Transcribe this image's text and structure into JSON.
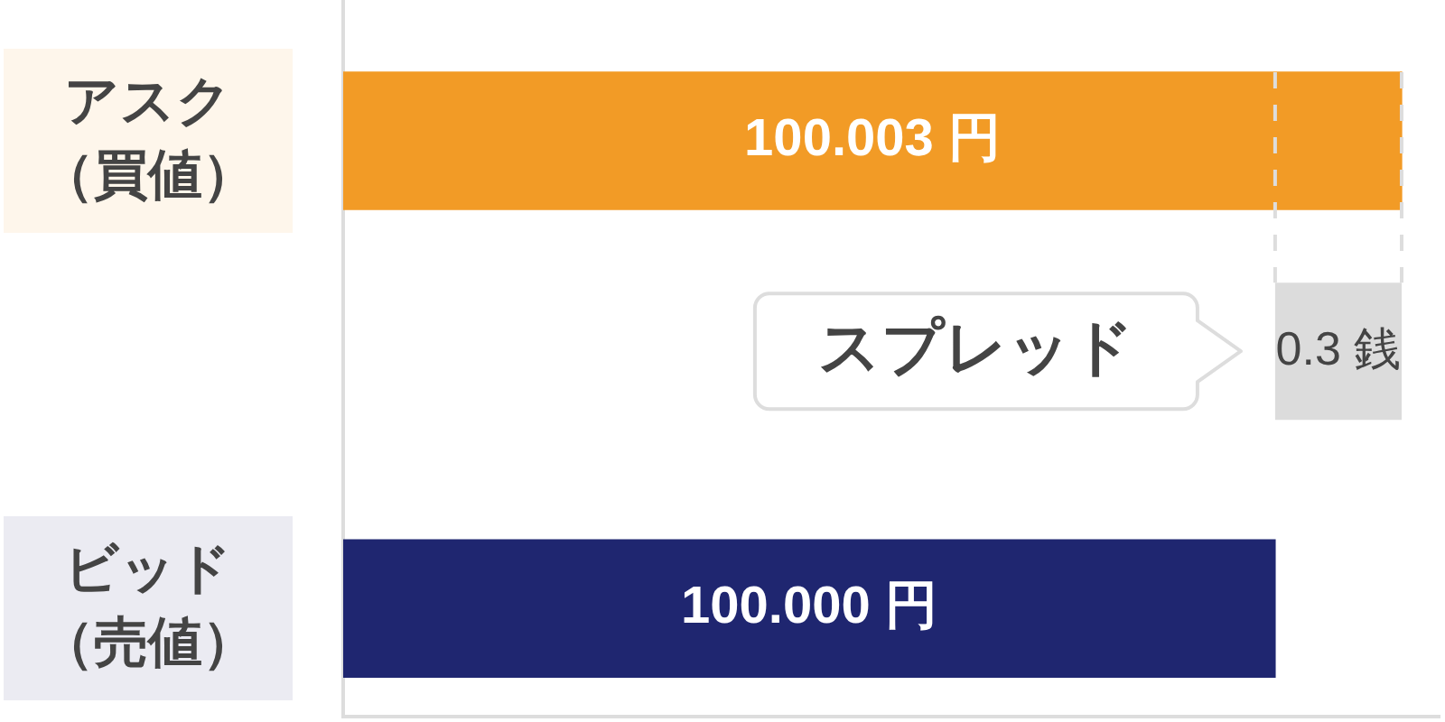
{
  "chart_data": {
    "type": "bar",
    "orientation": "horizontal",
    "categories": [
      "アスク（買値）",
      "ビッド（売値）"
    ],
    "values": [
      100.003,
      100.0
    ],
    "colors": [
      "#f29b26",
      "#1f2670"
    ],
    "value_labels": [
      "100.003 円",
      "100.000 円"
    ],
    "xlim": [
      99.9779,
      100.0039
    ],
    "tick_labels": "y",
    "grid": false,
    "legend": false,
    "bands": [
      {
        "axis": "x",
        "from": 100.0,
        "to": 100.003,
        "label": "0.3 銭",
        "color": "#dcdcdc"
      }
    ],
    "ref_lines": [
      {
        "axis": "x",
        "value": 100.0,
        "line_style": "dashed",
        "color": "#dddddd"
      },
      {
        "axis": "x",
        "value": 100.003,
        "line_style": "dashed",
        "color": "#dddddd"
      }
    ],
    "annotations": [
      {
        "text": "スプレッド",
        "x": 100.0
      }
    ]
  }
}
